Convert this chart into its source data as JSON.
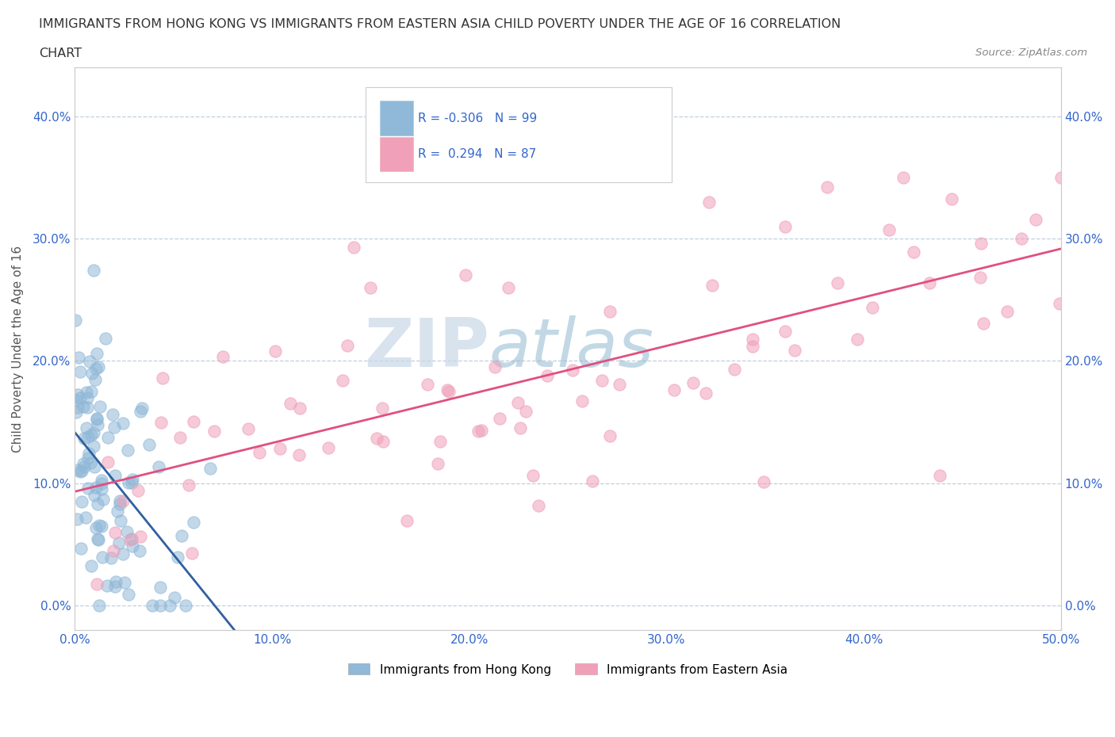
{
  "title_line1": "IMMIGRANTS FROM HONG KONG VS IMMIGRANTS FROM EASTERN ASIA CHILD POVERTY UNDER THE AGE OF 16 CORRELATION",
  "title_line2": "CHART",
  "source_text": "Source: ZipAtlas.com",
  "ylabel": "Child Poverty Under the Age of 16",
  "xmin": 0.0,
  "xmax": 0.5,
  "ymin": -0.02,
  "ymax": 0.44,
  "yticks": [
    0.0,
    0.1,
    0.2,
    0.3,
    0.4
  ],
  "ytick_labels": [
    "0.0%",
    "10.0%",
    "20.0%",
    "30.0%",
    "40.0%"
  ],
  "xticks": [
    0.0,
    0.1,
    0.2,
    0.3,
    0.4,
    0.5
  ],
  "xtick_labels": [
    "0.0%",
    "10.0%",
    "20.0%",
    "30.0%",
    "40.0%",
    "50.0%"
  ],
  "hk_R": -0.306,
  "hk_N": 99,
  "ea_R": 0.294,
  "ea_N": 87,
  "hk_color": "#90b8d8",
  "ea_color": "#f0a0b8",
  "hk_line_color": "#3060a0",
  "ea_line_color": "#e05080",
  "watermark_zip": "ZIP",
  "watermark_atlas": "atlas",
  "legend_label_hk": "Immigrants from Hong Kong",
  "legend_label_ea": "Immigrants from Eastern Asia"
}
